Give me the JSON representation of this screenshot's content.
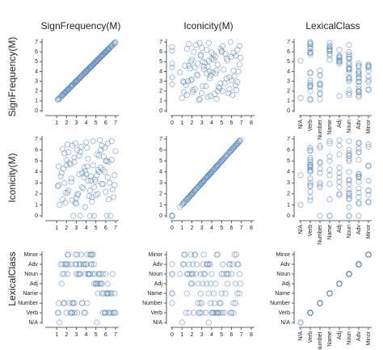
{
  "chart_data": {
    "type": "splom",
    "color": "#4a7fb5",
    "variables": [
      {
        "name": "SignFrequency(M)",
        "key": "sf",
        "xlim": [
          0,
          7
        ],
        "ylim": [
          0,
          7
        ],
        "xticks": [
          1,
          2,
          3,
          4,
          5,
          6,
          7
        ],
        "yticks": [
          0,
          1,
          2,
          3,
          4,
          5,
          6,
          7
        ]
      },
      {
        "name": "Iconicity(M)",
        "key": "ic",
        "xlim": [
          0,
          8
        ],
        "ylim": [
          0,
          7
        ],
        "xticks": [
          0,
          1,
          2,
          3,
          4,
          5,
          6,
          7,
          8
        ],
        "yticks": [
          0,
          1,
          2,
          3,
          4,
          5,
          6,
          7
        ]
      },
      {
        "name": "LexicalClass",
        "key": "lc",
        "categories": [
          "N/A",
          "Verb",
          "Number",
          "Name",
          "Adj",
          "Noun",
          "Adv",
          "Minor"
        ]
      }
    ],
    "points": {
      "sf": [
        1.2,
        2.1,
        3.4,
        4.5,
        5.6,
        6.3,
        6.9,
        2.8,
        3.9,
        5.1,
        1.6,
        2.5,
        3.1,
        4.2,
        4.8,
        5.9,
        6.6,
        1.9,
        3.6,
        5.3,
        2.2,
        2.9,
        3.8,
        4.4,
        5.0,
        6.1,
        6.8,
        1.4,
        4.1,
        5.7,
        1.8,
        2.6,
        3.3,
        4.7,
        5.4,
        6.0,
        6.5,
        2.3,
        3.0,
        4.9,
        1.1,
        2.0,
        3.5,
        4.3,
        5.2,
        6.2,
        7.0,
        2.7,
        3.7,
        5.5,
        1.5,
        2.4,
        3.2,
        4.0,
        4.6,
        5.8,
        6.4,
        1.7,
        4.8,
        6.7,
        2.1,
        3.0,
        3.9,
        4.5,
        5.1,
        5.6,
        6.3,
        1.3,
        2.6,
        4.2,
        1.9,
        2.8,
        3.4,
        4.1,
        5.0,
        5.9,
        6.9,
        2.2,
        3.6,
        5.3,
        1.6,
        2.5,
        3.1,
        4.4,
        5.5,
        6.1,
        6.6,
        1.2,
        3.8,
        4.7,
        2.0,
        2.9,
        3.3,
        4.0,
        5.2,
        5.7,
        6.2,
        1.8,
        4.6,
        6.0
      ],
      "ic": [
        4.5,
        2.1,
        5.8,
        3.2,
        6.4,
        1.5,
        2.8,
        4.9,
        0.8,
        3.7,
        6.1,
        3.4,
        1.9,
        5.2,
        2.6,
        4.0,
        6.8,
        1.2,
        3.9,
        5.5,
        2.3,
        6.6,
        4.4,
        0.0,
        3.1,
        5.0,
        1.7,
        3.6,
        6.2,
        2.9,
        5.7,
        1.4,
        3.8,
        4.6,
        6.9,
        2.2,
        0.0,
        4.8,
        1.1,
        3.3,
        2.7,
        5.1,
        6.3,
        1.8,
        4.2,
        3.5,
        5.9,
        0.0,
        2.5,
        6.0,
        3.9,
        4.7,
        2.0,
        6.7,
        1.3,
        5.4,
        3.0,
        4.3,
        0.0,
        2.4,
        6.5,
        1.6,
        4.1,
        3.6,
        5.6,
        2.9,
        4.9,
        1.0,
        6.4,
        3.2,
        2.1,
        5.3,
        0.0,
        4.5,
        1.9,
        6.2,
        3.7,
        5.8,
        2.6,
        4.0,
        1.5,
        3.1,
        6.0,
        2.3,
        4.4,
        0.0,
        5.1,
        2.8,
        3.5,
        6.8,
        4.6,
        1.2,
        5.5,
        3.8,
        2.0,
        4.2,
        6.6,
        3.0,
        1.7,
        5.0
      ],
      "lc": [
        "Verb",
        "Noun",
        "Adv",
        "Minor",
        "Adj",
        "Name",
        "Verb",
        "Number",
        "Noun",
        "N/A",
        "Adv",
        "Verb",
        "Minor",
        "Noun",
        "Adj",
        "Verb",
        "Name",
        "Adv",
        "Number",
        "Noun",
        "Minor",
        "Adv",
        "Verb",
        "Noun",
        "Adj",
        "Name",
        "Verb",
        "Adv",
        "Number",
        "Noun",
        "Noun",
        "Verb",
        "Adv",
        "Minor",
        "Adj",
        "Verb",
        "Name",
        "Number",
        "Adv",
        "Noun",
        "Verb",
        "Adv",
        "Minor",
        "Noun",
        "Name",
        "Adj",
        "Verb",
        "Number",
        "Adv",
        "Noun",
        "Adj",
        "Verb",
        "Noun",
        "Adv",
        "Minor",
        "Name",
        "Verb",
        "Number",
        "Adv",
        "Noun",
        "Minor",
        "Noun",
        "Verb",
        "Adv",
        "Adj",
        "Name",
        "Verb",
        "N/A",
        "Number",
        "Noun",
        "Adv",
        "Verb",
        "Noun",
        "Minor",
        "Adj",
        "Verb",
        "Name",
        "Adv",
        "Number",
        "Noun",
        "Noun",
        "Adv",
        "Verb",
        "Minor",
        "Adj",
        "Name",
        "Verb",
        "Number",
        "Adv",
        "Noun",
        "Verb",
        "Minor",
        "Noun",
        "Adv",
        "Adj",
        "Verb",
        "Name",
        "Number",
        "Adv",
        "Noun"
      ]
    }
  }
}
